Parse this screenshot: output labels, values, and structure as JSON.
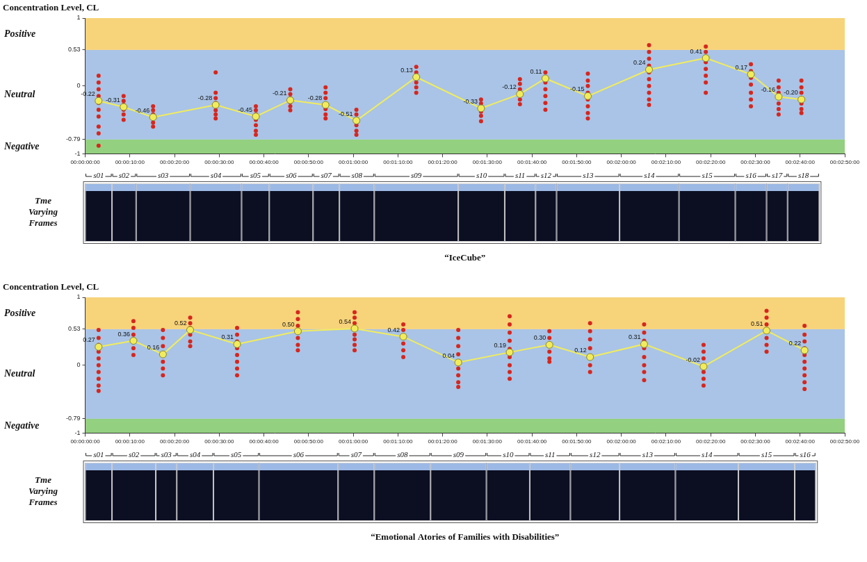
{
  "chart_data": [
    {
      "type": "line",
      "title": "“IceCube”",
      "y_label": "Concentration Level, CL",
      "ylim": [
        -1,
        1
      ],
      "yticks": [
        -1,
        -0.79,
        0,
        0.53,
        1
      ],
      "xlim": [
        0,
        170
      ],
      "xticks": [
        {
          "value": 0,
          "label": "00:00:00:00"
        },
        {
          "value": 10,
          "label": "00:00:10:00"
        },
        {
          "value": 20,
          "label": "00:00:20:00"
        },
        {
          "value": 30,
          "label": "00:00:30:00"
        },
        {
          "value": 40,
          "label": "00:00:40:00"
        },
        {
          "value": 50,
          "label": "00:00:50:00"
        },
        {
          "value": 60,
          "label": "00:01:00:00"
        },
        {
          "value": 70,
          "label": "00:01:10:00"
        },
        {
          "value": 80,
          "label": "00:01:20:00"
        },
        {
          "value": 90,
          "label": "00:01:30:00"
        },
        {
          "value": 100,
          "label": "00:01:40:00"
        },
        {
          "value": 110,
          "label": "00:01:50:00"
        },
        {
          "value": 120,
          "label": "00:02:00:00"
        },
        {
          "value": 130,
          "label": "00:02:10:00"
        },
        {
          "value": 140,
          "label": "00:02:20:00"
        },
        {
          "value": 150,
          "label": "00:02:30:00"
        },
        {
          "value": 160,
          "label": "00:02:40:00"
        },
        {
          "value": 170,
          "label": "00:02:50:00"
        }
      ],
      "grid": false,
      "bands": [
        {
          "name": "Positive",
          "range": [
            0.53,
            1
          ],
          "color": "#f7d37a"
        },
        {
          "name": "Neutral",
          "range": [
            -0.79,
            0.53
          ],
          "color": "#a9c4e6"
        },
        {
          "name": "Negative",
          "range": [
            -1,
            -0.79
          ],
          "color": "#93d07f"
        }
      ],
      "segments": {
        "names": [
          "s01",
          "s02",
          "s03",
          "s04",
          "s05",
          "s06",
          "s07",
          "s08",
          "s09",
          "s10",
          "s11",
          "s12",
          "s13",
          "s14",
          "s15",
          "s16",
          "s17",
          "s18"
        ],
        "bounds": [
          0,
          6,
          11.4,
          23.5,
          35,
          41.2,
          51,
          56.9,
          64.7,
          83.5,
          93.9,
          100.8,
          105.5,
          119.6,
          132.9,
          145.5,
          152.5,
          157.2,
          164.3
        ]
      },
      "frames_label": "Tme Varying Frames",
      "x": [
        3.0,
        8.6,
        15.2,
        29.2,
        38.2,
        45.9,
        53.8,
        60.7,
        74.1,
        88.6,
        97.3,
        103.0,
        112.5,
        126.2,
        138.9,
        149.0,
        155.2,
        160.3
      ],
      "series": [
        {
          "type": "scatter",
          "color": "#d7261e",
          "marker": "circle",
          "values": [
            [
              0.15,
              0.05,
              -0.05,
              -0.15,
              -0.25,
              -0.35,
              -0.45,
              -0.6,
              -0.7,
              -0.88
            ],
            [
              -0.15,
              -0.22,
              -0.28,
              -0.35,
              -0.42,
              -0.5
            ],
            [
              -0.3,
              -0.36,
              -0.42,
              -0.48,
              -0.54,
              -0.6
            ],
            [
              0.2,
              -0.1,
              -0.18,
              -0.25,
              -0.3,
              -0.36,
              -0.42,
              -0.48
            ],
            [
              -0.3,
              -0.36,
              -0.42,
              -0.5,
              -0.58,
              -0.66,
              -0.72
            ],
            [
              -0.05,
              -0.12,
              -0.18,
              -0.24,
              -0.3,
              -0.36
            ],
            [
              -0.02,
              -0.1,
              -0.18,
              -0.26,
              -0.34,
              -0.42,
              -0.48
            ],
            [
              -0.35,
              -0.42,
              -0.5,
              -0.58,
              -0.66,
              -0.72
            ],
            [
              0.28,
              0.2,
              0.12,
              0.05,
              -0.02,
              -0.1
            ],
            [
              -0.2,
              -0.26,
              -0.32,
              -0.38,
              -0.44,
              -0.52
            ],
            [
              0.1,
              0.03,
              -0.05,
              -0.12,
              -0.2,
              -0.27
            ],
            [
              0.2,
              0.12,
              0.05,
              -0.05,
              -0.15,
              -0.25,
              -0.35
            ],
            [
              0.18,
              0.08,
              0,
              -0.1,
              -0.2,
              -0.3,
              -0.4,
              -0.48
            ],
            [
              0.6,
              0.5,
              0.4,
              0.3,
              0.2,
              0.1,
              0,
              -0.1,
              -0.2,
              -0.28
            ],
            [
              0.58,
              0.5,
              0.42,
              0.35,
              0.25,
              0.15,
              0.05,
              -0.1
            ],
            [
              0.32,
              0.22,
              0.12,
              0.02,
              -0.1,
              -0.2,
              -0.3
            ],
            [
              0.08,
              -0.02,
              -0.1,
              -0.18,
              -0.26,
              -0.34,
              -0.42
            ],
            [
              0.08,
              -0.02,
              -0.1,
              -0.18,
              -0.26,
              -0.34,
              -0.4
            ]
          ]
        },
        {
          "type": "line",
          "color": "#f2ec5c",
          "marker": "circle",
          "data_labels": true,
          "values": [
            -0.22,
            -0.31,
            -0.46,
            -0.28,
            -0.45,
            -0.21,
            -0.28,
            -0.51,
            0.13,
            -0.33,
            -0.12,
            0.11,
            -0.15,
            0.24,
            0.41,
            0.17,
            -0.16,
            -0.2
          ],
          "value_labels": [
            "-0.22",
            "-0.31",
            "-0.46",
            "-0.28",
            "-0.45",
            "-0.21",
            "-0.28",
            "-0.51",
            "0.13",
            "-0.33",
            "-0.12",
            "0.11",
            "-0.15",
            "0.24",
            "0.41",
            "0.17",
            "-0.16",
            "-0.20"
          ]
        }
      ]
    },
    {
      "type": "line",
      "title": "“Emotional Atories of Families with Disabilities”",
      "y_label": "Concentration Level, CL",
      "ylim": [
        -1,
        1
      ],
      "yticks": [
        -1,
        -0.79,
        0,
        0.53,
        1
      ],
      "xlim": [
        0,
        170
      ],
      "xticks": [
        {
          "value": 0,
          "label": "00:00:00:00"
        },
        {
          "value": 10,
          "label": "00:00:10:00"
        },
        {
          "value": 20,
          "label": "00:00:20:00"
        },
        {
          "value": 30,
          "label": "00:00:30:00"
        },
        {
          "value": 40,
          "label": "00:00:40:00"
        },
        {
          "value": 50,
          "label": "00:00:50:00"
        },
        {
          "value": 60,
          "label": "00:01:00:00"
        },
        {
          "value": 70,
          "label": "00:01:10:00"
        },
        {
          "value": 80,
          "label": "00:01:20:00"
        },
        {
          "value": 90,
          "label": "00:01:30:00"
        },
        {
          "value": 100,
          "label": "00:01:40:00"
        },
        {
          "value": 110,
          "label": "00:01:50:00"
        },
        {
          "value": 120,
          "label": "00:02:00:00"
        },
        {
          "value": 130,
          "label": "00:02:10:00"
        },
        {
          "value": 140,
          "label": "00:02:20:00"
        },
        {
          "value": 150,
          "label": "00:02:30:00"
        },
        {
          "value": 160,
          "label": "00:02:40:00"
        },
        {
          "value": 170,
          "label": "00:02:50:00"
        }
      ],
      "grid": false,
      "bands": [
        {
          "name": "Positive",
          "range": [
            0.53,
            1
          ],
          "color": "#f7d37a"
        },
        {
          "name": "Neutral",
          "range": [
            -0.79,
            0.53
          ],
          "color": "#a9c4e6"
        },
        {
          "name": "Negative",
          "range": [
            -1,
            -0.79
          ],
          "color": "#93d07f"
        }
      ],
      "segments": {
        "names": [
          "s01",
          "s02",
          "s03",
          "s04",
          "s05",
          "s06",
          "s07",
          "s08",
          "s09",
          "s10",
          "s11",
          "s12",
          "s13",
          "s14",
          "s15",
          "s16"
        ],
        "bounds": [
          0,
          6,
          15.8,
          20.5,
          28.7,
          38.9,
          56.6,
          64.7,
          77.3,
          89.8,
          99.5,
          108.6,
          119.6,
          132.1,
          146.2,
          158.8,
          163.5
        ]
      },
      "frames_label": "Tme Varying Frames",
      "x": [
        3.0,
        10.8,
        17.4,
        23.5,
        34.0,
        47.6,
        60.3,
        71.2,
        83.5,
        95.0,
        103.9,
        113.0,
        125.1,
        138.4,
        152.5,
        161.0
      ],
      "series": [
        {
          "type": "scatter",
          "color": "#d7261e",
          "marker": "circle",
          "values": [
            [
              0.52,
              0.4,
              0.3,
              0.2,
              0.1,
              0,
              -0.1,
              -0.2,
              -0.3,
              -0.38
            ],
            [
              0.65,
              0.55,
              0.45,
              0.35,
              0.25,
              0.15
            ],
            [
              0.52,
              0.4,
              0.28,
              0.16,
              0.05,
              -0.05,
              -0.15
            ],
            [
              0.7,
              0.62,
              0.55,
              0.45,
              0.35,
              0.28
            ],
            [
              0.55,
              0.45,
              0.35,
              0.25,
              0.15,
              0.05,
              -0.05,
              -0.15
            ],
            [
              0.78,
              0.68,
              0.58,
              0.48,
              0.4,
              0.3,
              0.22
            ],
            [
              0.78,
              0.7,
              0.62,
              0.54,
              0.45,
              0.38,
              0.3,
              0.22
            ],
            [
              0.6,
              0.52,
              0.42,
              0.32,
              0.22,
              0.12
            ],
            [
              0.52,
              0.4,
              0.28,
              0.16,
              0.05,
              -0.05,
              -0.15,
              -0.25,
              -0.32
            ],
            [
              0.72,
              0.6,
              0.48,
              0.36,
              0.24,
              0.12,
              0,
              -0.1,
              -0.2
            ],
            [
              0.5,
              0.4,
              0.3,
              0.2,
              0.1,
              0.05
            ],
            [
              0.62,
              0.5,
              0.38,
              0.25,
              0.12,
              0,
              -0.1
            ],
            [
              0.6,
              0.48,
              0.36,
              0.25,
              0.12,
              0,
              -0.1,
              -0.22
            ],
            [
              0.3,
              0.2,
              0.1,
              0,
              -0.1,
              -0.2,
              -0.3
            ],
            [
              0.8,
              0.7,
              0.6,
              0.5,
              0.4,
              0.3,
              0.2
            ],
            [
              0.58,
              0.45,
              0.35,
              0.25,
              0.15,
              0.05,
              -0.05,
              -0.15,
              -0.25,
              -0.35
            ]
          ]
        },
        {
          "type": "line",
          "color": "#f2ec5c",
          "marker": "circle",
          "data_labels": true,
          "values": [
            0.27,
            0.36,
            0.16,
            0.52,
            0.31,
            0.5,
            0.54,
            0.42,
            0.04,
            0.19,
            0.3,
            0.12,
            0.31,
            -0.02,
            0.51,
            0.22
          ],
          "value_labels": [
            "0.27",
            "0.36",
            "0.16",
            "0.52",
            "0.31",
            "0.50",
            "0.54",
            "0.42",
            "0.04",
            "0.19",
            "0.30",
            "0.12",
            "0.31",
            "-0.02",
            "0.51",
            "0.22"
          ]
        }
      ]
    }
  ]
}
